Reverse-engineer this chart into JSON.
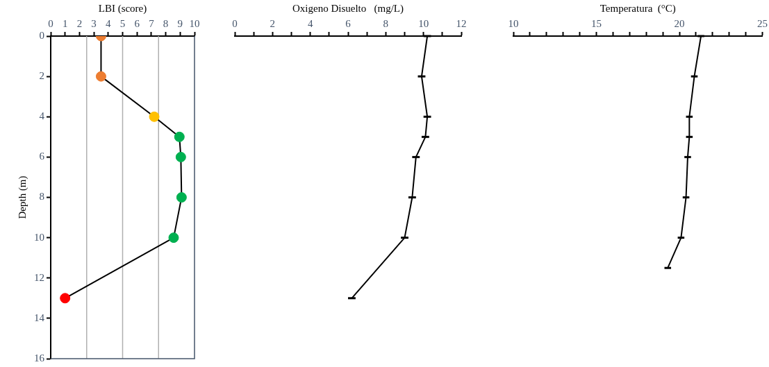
{
  "chart_data": [
    {
      "type": "line",
      "xlabel": "LBI (score)",
      "ylabel": "Depth (m)",
      "xlim": [
        0,
        10
      ],
      "xticks": [
        0,
        1,
        2,
        3,
        4,
        5,
        6,
        7,
        8,
        9,
        10
      ],
      "ylim": [
        16,
        0
      ],
      "yticks": [
        0,
        2,
        4,
        6,
        8,
        10,
        12,
        14,
        16
      ],
      "marker": "circle",
      "grid": false,
      "ref_lines": [
        {
          "axis": "x",
          "value": 2.5,
          "color": "#b0b0b0"
        },
        {
          "axis": "x",
          "value": 5,
          "color": "#b0b0b0"
        },
        {
          "axis": "x",
          "value": 7.5,
          "color": "#b0b0b0"
        }
      ],
      "series": [
        {
          "color": "#000000",
          "colors": [
            "#ed7d31",
            "#ed7d31",
            "#ffc000",
            "#00b050",
            "#00b050",
            "#00b050",
            "#00b050",
            "#ff0000"
          ],
          "x": [
            3.5,
            3.5,
            7.2,
            8.95,
            9.05,
            9.1,
            8.55,
            1.0
          ],
          "values": [
            0,
            2,
            4,
            5,
            6,
            8,
            10,
            13
          ]
        }
      ]
    },
    {
      "type": "line",
      "xlabel": "Oxigeno Disuelto   (mg/L)",
      "xlim": [
        0,
        12
      ],
      "xticks": [
        0,
        {
          "value": 1,
          "label": null
        },
        2,
        {
          "value": 3,
          "label": null
        },
        4,
        {
          "value": 5,
          "label": null
        },
        6,
        {
          "value": 7,
          "label": null
        },
        8,
        {
          "value": 9,
          "label": null
        },
        10,
        {
          "value": 11,
          "label": null
        },
        12
      ],
      "ylim": [
        16,
        0
      ],
      "tick_labels": "x",
      "marker": "none",
      "grid": false,
      "series": [
        {
          "color": "#000000",
          "x": [
            10.2,
            9.9,
            10.2,
            10.1,
            9.6,
            9.4,
            9.0,
            6.2
          ],
          "values": [
            0,
            2,
            4,
            5,
            6,
            8,
            10,
            13
          ],
          "xerrors": [
            0.2,
            0.2,
            0.2,
            0.2,
            0.2,
            0.2,
            0.2,
            0.2
          ]
        }
      ]
    },
    {
      "type": "line",
      "xlabel": "Temperatura  (°C)",
      "xlim": [
        10,
        25
      ],
      "xticks": [
        10,
        {
          "value": 11,
          "label": null
        },
        {
          "value": 12,
          "label": null
        },
        {
          "value": 13,
          "label": null
        },
        {
          "value": 14,
          "label": null
        },
        15,
        {
          "value": 16,
          "label": null
        },
        {
          "value": 17,
          "label": null
        },
        {
          "value": 18,
          "label": null
        },
        {
          "value": 19,
          "label": null
        },
        20,
        {
          "value": 21,
          "label": null
        },
        {
          "value": 22,
          "label": null
        },
        {
          "value": 23,
          "label": null
        },
        {
          "value": 24,
          "label": null
        },
        25
      ],
      "ylim": [
        16,
        0
      ],
      "tick_labels": "x",
      "marker": "none",
      "grid": false,
      "series": [
        {
          "color": "#000000",
          "x": [
            21.3,
            20.9,
            20.6,
            20.6,
            20.5,
            20.4,
            20.1,
            19.3
          ],
          "values": [
            0,
            2,
            4,
            5,
            6,
            8,
            10,
            11.5
          ],
          "xerrors": [
            0.2,
            0.2,
            0.2,
            0.2,
            0.2,
            0.2,
            0.2,
            0.2
          ]
        }
      ]
    }
  ]
}
